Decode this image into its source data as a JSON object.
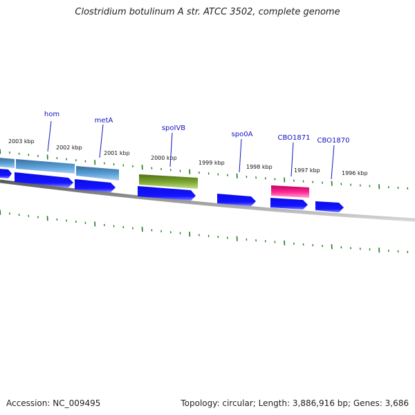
{
  "title": "Clostridium botulinum A str. ATCC 3502, complete genome",
  "accession": "Accession: NC_009495",
  "summary": "Topology: circular; Length: 3,886,916 bp; Genes: 3,686",
  "ruler_labels": [
    "2003 kbp",
    "2002 kbp",
    "2001 kbp",
    "2000 kbp",
    "1999 kbp",
    "1998 kbp",
    "1997 kbp",
    "1996 kbp"
  ],
  "gene_labels": [
    "hom",
    "metA",
    "spoIVB",
    "spo0A",
    "CBO1871",
    "CBO1870"
  ],
  "colors": {
    "tick": "#1a7a1a",
    "label": "#1010c0",
    "cds": "#0a0ae6",
    "gene_blue": "#4a8ac4",
    "gene_olive": "#6b8e23",
    "gene_pink": "#e6197d",
    "backbone": "#808080"
  }
}
